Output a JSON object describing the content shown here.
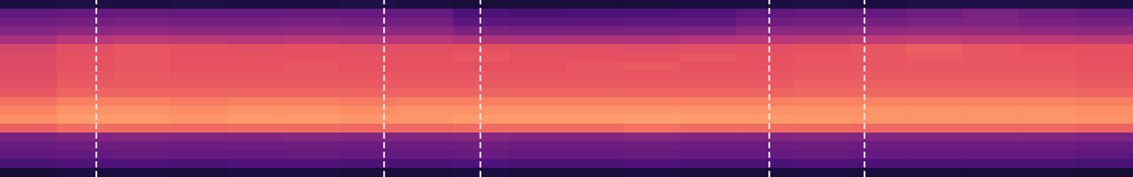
{
  "chart_data": {
    "type": "heatmap",
    "tick_labels": false,
    "xlim": [
      0,
      20
    ],
    "ylim": [
      0,
      20
    ],
    "color_range": [
      0,
      1
    ],
    "vlines": [
      1.7,
      6.78,
      8.48,
      13.58,
      15.26
    ],
    "cells": [
      [
        0.12,
        0.13,
        0.12,
        0.13,
        0.12,
        0.12,
        0.13,
        0.12,
        0.11,
        0.11,
        0.11,
        0.11,
        0.12,
        0.12,
        0.13,
        0.12,
        0.13,
        0.14,
        0.13,
        0.12
      ],
      [
        0.29,
        0.3,
        0.31,
        0.3,
        0.3,
        0.31,
        0.3,
        0.3,
        0.24,
        0.23,
        0.24,
        0.24,
        0.25,
        0.29,
        0.3,
        0.3,
        0.33,
        0.36,
        0.33,
        0.3
      ],
      [
        0.33,
        0.34,
        0.35,
        0.34,
        0.34,
        0.35,
        0.34,
        0.34,
        0.28,
        0.28,
        0.28,
        0.29,
        0.29,
        0.33,
        0.34,
        0.34,
        0.36,
        0.37,
        0.35,
        0.34
      ],
      [
        0.38,
        0.4,
        0.41,
        0.4,
        0.4,
        0.41,
        0.4,
        0.4,
        0.36,
        0.35,
        0.36,
        0.36,
        0.37,
        0.4,
        0.4,
        0.41,
        0.42,
        0.42,
        0.41,
        0.4
      ],
      [
        0.46,
        0.5,
        0.52,
        0.51,
        0.5,
        0.51,
        0.5,
        0.5,
        0.48,
        0.47,
        0.48,
        0.48,
        0.49,
        0.5,
        0.51,
        0.52,
        0.53,
        0.52,
        0.52,
        0.51
      ],
      [
        0.58,
        0.62,
        0.64,
        0.63,
        0.62,
        0.63,
        0.62,
        0.62,
        0.63,
        0.62,
        0.62,
        0.61,
        0.62,
        0.62,
        0.63,
        0.64,
        0.66,
        0.64,
        0.63,
        0.63
      ],
      [
        0.6,
        0.63,
        0.64,
        0.63,
        0.63,
        0.63,
        0.63,
        0.63,
        0.64,
        0.63,
        0.63,
        0.63,
        0.64,
        0.63,
        0.64,
        0.64,
        0.65,
        0.64,
        0.64,
        0.63
      ],
      [
        0.6,
        0.63,
        0.64,
        0.63,
        0.63,
        0.64,
        0.63,
        0.63,
        0.63,
        0.63,
        0.64,
        0.65,
        0.63,
        0.63,
        0.64,
        0.64,
        0.64,
        0.64,
        0.64,
        0.63
      ],
      [
        0.61,
        0.64,
        0.65,
        0.64,
        0.64,
        0.64,
        0.64,
        0.64,
        0.64,
        0.64,
        0.64,
        0.64,
        0.64,
        0.64,
        0.65,
        0.65,
        0.65,
        0.65,
        0.65,
        0.64
      ],
      [
        0.62,
        0.65,
        0.65,
        0.65,
        0.65,
        0.65,
        0.65,
        0.65,
        0.65,
        0.65,
        0.65,
        0.65,
        0.65,
        0.65,
        0.66,
        0.66,
        0.66,
        0.66,
        0.66,
        0.65
      ],
      [
        0.64,
        0.67,
        0.67,
        0.67,
        0.67,
        0.67,
        0.67,
        0.67,
        0.67,
        0.67,
        0.67,
        0.67,
        0.67,
        0.67,
        0.68,
        0.68,
        0.68,
        0.68,
        0.68,
        0.67
      ],
      [
        0.7,
        0.73,
        0.73,
        0.72,
        0.73,
        0.73,
        0.72,
        0.73,
        0.73,
        0.73,
        0.73,
        0.73,
        0.73,
        0.73,
        0.74,
        0.74,
        0.74,
        0.74,
        0.74,
        0.73
      ],
      [
        0.74,
        0.77,
        0.77,
        0.76,
        0.77,
        0.77,
        0.76,
        0.77,
        0.77,
        0.77,
        0.77,
        0.78,
        0.77,
        0.77,
        0.77,
        0.77,
        0.77,
        0.77,
        0.77,
        0.76
      ],
      [
        0.76,
        0.79,
        0.79,
        0.78,
        0.79,
        0.79,
        0.78,
        0.78,
        0.79,
        0.79,
        0.79,
        0.8,
        0.79,
        0.79,
        0.79,
        0.78,
        0.78,
        0.78,
        0.78,
        0.77
      ],
      [
        0.66,
        0.69,
        0.69,
        0.68,
        0.69,
        0.69,
        0.68,
        0.68,
        0.69,
        0.69,
        0.69,
        0.7,
        0.69,
        0.69,
        0.69,
        0.68,
        0.68,
        0.68,
        0.68,
        0.67
      ],
      [
        0.36,
        0.38,
        0.39,
        0.38,
        0.38,
        0.39,
        0.38,
        0.38,
        0.39,
        0.38,
        0.38,
        0.39,
        0.38,
        0.38,
        0.39,
        0.38,
        0.38,
        0.38,
        0.38,
        0.37
      ],
      [
        0.31,
        0.33,
        0.33,
        0.32,
        0.33,
        0.33,
        0.32,
        0.32,
        0.33,
        0.32,
        0.32,
        0.33,
        0.32,
        0.32,
        0.33,
        0.32,
        0.32,
        0.32,
        0.32,
        0.31
      ],
      [
        0.29,
        0.3,
        0.31,
        0.3,
        0.3,
        0.31,
        0.3,
        0.3,
        0.31,
        0.3,
        0.3,
        0.31,
        0.3,
        0.3,
        0.31,
        0.3,
        0.3,
        0.3,
        0.3,
        0.29
      ],
      [
        0.23,
        0.25,
        0.25,
        0.24,
        0.25,
        0.25,
        0.24,
        0.24,
        0.25,
        0.24,
        0.24,
        0.25,
        0.24,
        0.24,
        0.25,
        0.24,
        0.24,
        0.24,
        0.24,
        0.23
      ],
      [
        0.1,
        0.12,
        0.12,
        0.11,
        0.12,
        0.12,
        0.11,
        0.11,
        0.12,
        0.11,
        0.11,
        0.12,
        0.11,
        0.11,
        0.12,
        0.11,
        0.11,
        0.11,
        0.11,
        0.1
      ]
    ]
  }
}
